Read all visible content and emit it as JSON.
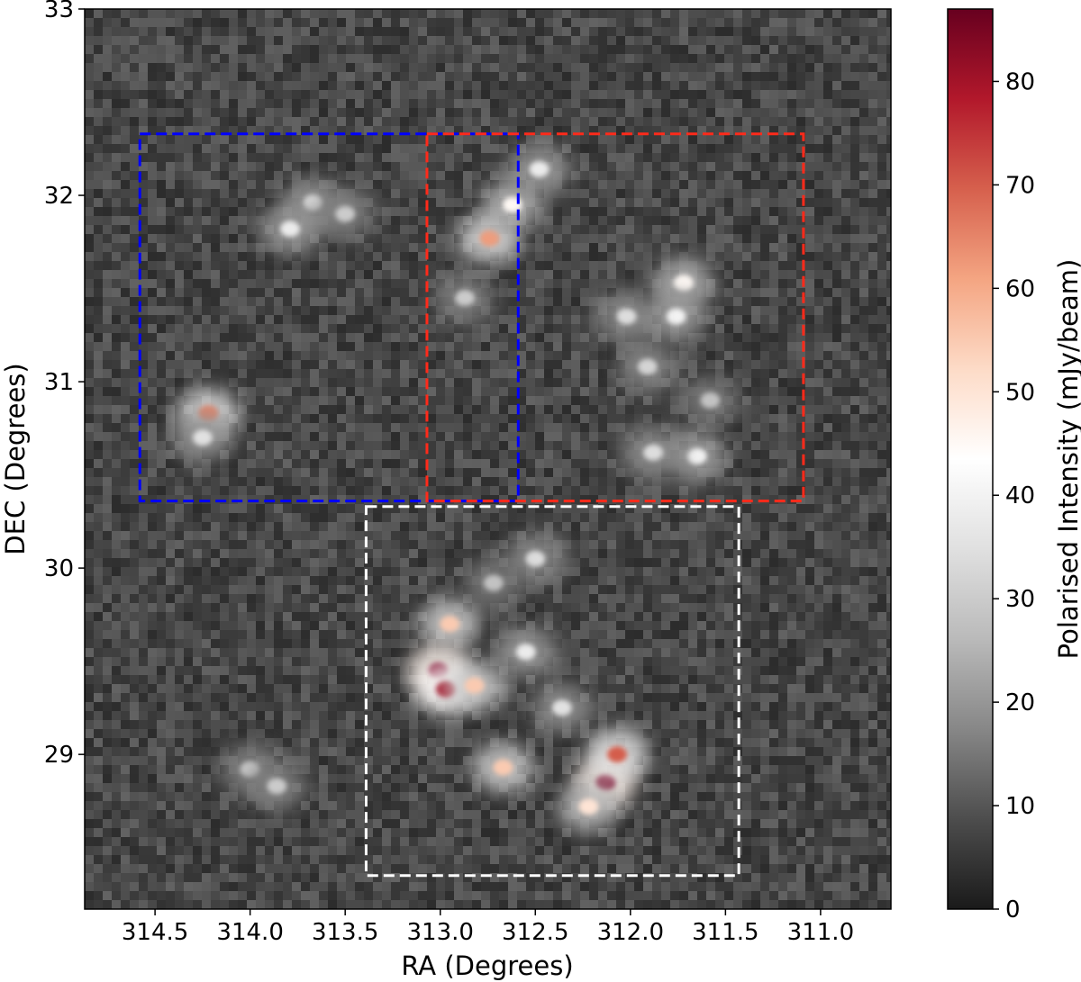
{
  "chart_data": {
    "type": "heatmap",
    "title": "",
    "xlabel": "RA (Degrees)",
    "ylabel": "DEC (Degrees)",
    "xlim": [
      314.87,
      310.63
    ],
    "ylim": [
      28.17,
      33.0
    ],
    "x_ticks": [
      314.5,
      314.0,
      313.5,
      313.0,
      312.5,
      312.0,
      311.5,
      311.0
    ],
    "x_tick_labels": [
      "314.5",
      "314.0",
      "313.5",
      "313.0",
      "312.5",
      "312.0",
      "311.5",
      "311.0"
    ],
    "y_ticks": [
      29,
      30,
      31,
      32,
      33
    ],
    "y_tick_labels": [
      "29",
      "30",
      "31",
      "32",
      "33"
    ],
    "colorbar": {
      "label": "Polarised Intensity (mJy/beam)",
      "range": [
        0,
        87
      ],
      "ticks": [
        0,
        10,
        20,
        30,
        40,
        50,
        60,
        70,
        80
      ],
      "tick_labels": [
        "0",
        "10",
        "20",
        "30",
        "40",
        "50",
        "60",
        "70",
        "80"
      ],
      "colormap": "RdGy_r",
      "stops": [
        "#1a1a1a",
        "#4d4d4d",
        "#878787",
        "#bababa",
        "#e0e0e0",
        "#ffffff",
        "#fddbc7",
        "#f4a582",
        "#d6604d",
        "#b2182b",
        "#67001f"
      ]
    },
    "grid": false,
    "regions": [
      {
        "color": "#0000ff",
        "ra": [
          314.58,
          312.59
        ],
        "dec": [
          30.36,
          32.33
        ]
      },
      {
        "color": "#ff2a1a",
        "ra": [
          313.07,
          311.09
        ],
        "dec": [
          30.36,
          32.33
        ]
      },
      {
        "color": "#ffffff",
        "ra": [
          313.39,
          311.43
        ],
        "dec": [
          28.35,
          30.33
        ]
      }
    ],
    "emission_features": [
      {
        "ra": 313.67,
        "dec": 31.96,
        "peak": 35
      },
      {
        "ra": 313.79,
        "dec": 31.82,
        "peak": 38
      },
      {
        "ra": 313.5,
        "dec": 31.9,
        "peak": 30
      },
      {
        "ra": 314.22,
        "dec": 30.83,
        "peak": 65
      },
      {
        "ra": 314.25,
        "dec": 30.7,
        "peak": 35
      },
      {
        "ra": 312.74,
        "dec": 31.77,
        "peak": 62
      },
      {
        "ra": 312.62,
        "dec": 31.95,
        "peak": 45
      },
      {
        "ra": 312.48,
        "dec": 32.14,
        "peak": 38
      },
      {
        "ra": 312.87,
        "dec": 31.45,
        "peak": 30
      },
      {
        "ra": 311.72,
        "dec": 31.53,
        "peak": 45
      },
      {
        "ra": 311.76,
        "dec": 31.35,
        "peak": 40
      },
      {
        "ra": 312.02,
        "dec": 31.35,
        "peak": 34
      },
      {
        "ra": 311.91,
        "dec": 31.08,
        "peak": 32
      },
      {
        "ra": 311.65,
        "dec": 30.6,
        "peak": 40
      },
      {
        "ra": 311.88,
        "dec": 30.62,
        "peak": 34
      },
      {
        "ra": 311.58,
        "dec": 30.9,
        "peak": 28
      },
      {
        "ra": 312.5,
        "dec": 30.05,
        "peak": 34
      },
      {
        "ra": 312.72,
        "dec": 29.92,
        "peak": 28
      },
      {
        "ra": 312.95,
        "dec": 29.7,
        "peak": 55
      },
      {
        "ra": 313.01,
        "dec": 29.45,
        "peak": 85
      },
      {
        "ra": 312.97,
        "dec": 29.35,
        "peak": 80
      },
      {
        "ra": 312.82,
        "dec": 29.37,
        "peak": 55
      },
      {
        "ra": 312.55,
        "dec": 29.55,
        "peak": 38
      },
      {
        "ra": 312.67,
        "dec": 28.93,
        "peak": 55
      },
      {
        "ra": 312.13,
        "dec": 28.85,
        "peak": 85
      },
      {
        "ra": 312.07,
        "dec": 29.0,
        "peak": 70
      },
      {
        "ra": 312.22,
        "dec": 28.72,
        "peak": 50
      },
      {
        "ra": 312.36,
        "dec": 29.25,
        "peak": 35
      },
      {
        "ra": 314.0,
        "dec": 28.92,
        "peak": 30
      },
      {
        "ra": 313.86,
        "dec": 28.83,
        "peak": 30
      }
    ]
  }
}
